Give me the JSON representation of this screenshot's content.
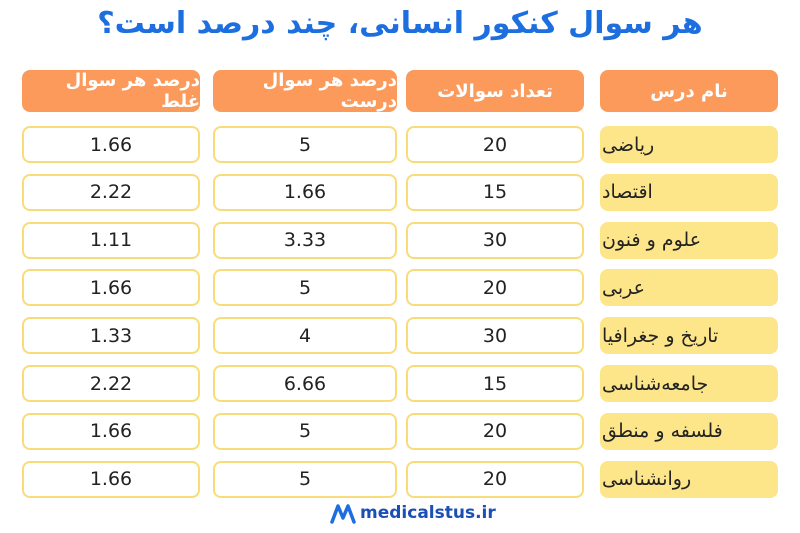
{
  "title": "هر سوال کنکور انسانی، چند درصد است؟",
  "table": {
    "headers": [
      "نام درس",
      "تعداد سوالات",
      "درصد هر سوال درست",
      "درصد هر سوال غلط"
    ],
    "rows": [
      [
        "ریاضی",
        20,
        5,
        1.66
      ],
      [
        "اقتصاد",
        15,
        1.66,
        2.22
      ],
      [
        "علوم و فنون",
        30,
        3.33,
        1.11
      ],
      [
        "عربی",
        20,
        5,
        1.66
      ],
      [
        "تاریخ و جغرافیا",
        30,
        4,
        1.33
      ],
      [
        "جامعه‌شناسی",
        15,
        6.66,
        2.22
      ],
      [
        "فلسفه و منطق",
        20,
        5,
        1.66
      ],
      [
        "روانشناسی",
        20,
        5,
        1.66
      ]
    ]
  },
  "footer": {
    "brand": "medicalstus.ir"
  }
}
